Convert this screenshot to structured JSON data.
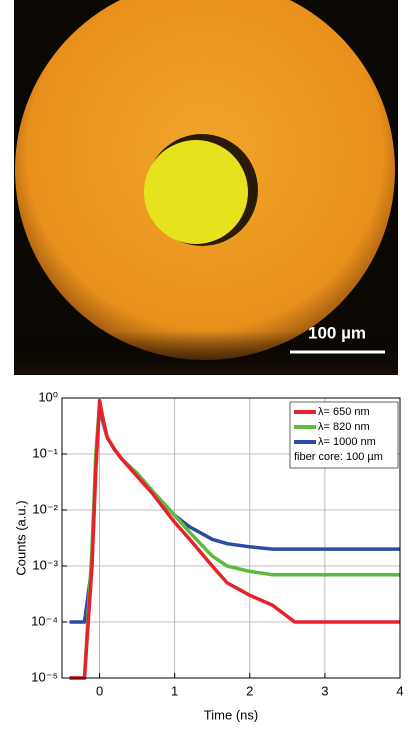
{
  "photo": {
    "scale_label": "100 µm"
  },
  "chart_data": {
    "type": "line",
    "xlabel": "Time (ns)",
    "ylabel": "Counts (a.u.)",
    "x": [
      -0.4,
      -0.2,
      -0.1,
      -0.05,
      0,
      0.05,
      0.1,
      0.2,
      0.3,
      0.5,
      0.7,
      1.0,
      1.2,
      1.5,
      1.7,
      2.0,
      2.3,
      2.6,
      3.0,
      3.3,
      3.6,
      4.0
    ],
    "series": [
      {
        "name": "λ= 650 nm",
        "color": "#e8222a",
        "values": [
          1e-05,
          1e-05,
          0.001,
          0.05,
          0.9,
          0.4,
          0.2,
          0.12,
          0.08,
          0.04,
          0.02,
          0.006,
          0.003,
          0.001,
          0.0005,
          0.0003,
          0.0002,
          0.0001,
          0.0001,
          0.0001,
          0.0001,
          0.0001
        ]
      },
      {
        "name": "λ= 820 nm",
        "color": "#5cba3c",
        "values": [
          1e-05,
          1e-05,
          0.002,
          0.1,
          0.8,
          0.4,
          0.2,
          0.12,
          0.08,
          0.045,
          0.022,
          0.008,
          0.004,
          0.0015,
          0.001,
          0.0008,
          0.0007,
          0.0007,
          0.0007,
          0.0007,
          0.0007,
          0.0007
        ]
      },
      {
        "name": "λ= 1000 nm",
        "color": "#2a4da0",
        "values": [
          0.0001,
          0.0001,
          0.001,
          0.08,
          0.7,
          0.35,
          0.2,
          0.12,
          0.08,
          0.045,
          0.022,
          0.008,
          0.005,
          0.003,
          0.0025,
          0.0022,
          0.002,
          0.002,
          0.002,
          0.002,
          0.002,
          0.002
        ]
      }
    ],
    "annotations": [
      "fiber core: 100  µm"
    ],
    "xlim": [
      -0.5,
      4
    ],
    "xticks": [
      0,
      1,
      2,
      3,
      4
    ],
    "ylim": [
      1e-05,
      1
    ],
    "log_y": true,
    "yticks": [
      {
        "value": 1,
        "label": "10⁰"
      },
      {
        "value": 0.1,
        "label": "10⁻¹"
      },
      {
        "value": 0.01,
        "label": "10⁻²"
      },
      {
        "value": 0.001,
        "label": "10⁻³"
      },
      {
        "value": 0.0001,
        "label": "10⁻⁴"
      },
      {
        "value": 1e-05,
        "label": "10⁻⁵"
      }
    ],
    "grid": true,
    "legend": "upper right"
  }
}
